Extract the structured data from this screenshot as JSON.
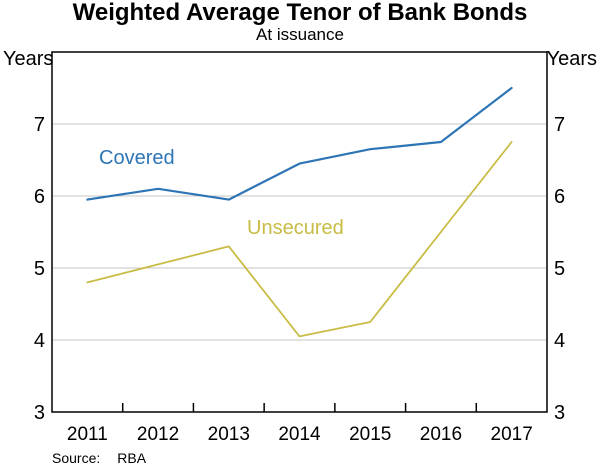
{
  "title": "Weighted Average Tenor of Bank Bonds",
  "subtitle": "At issuance",
  "axis_units": {
    "left": "Years",
    "right": "Years"
  },
  "source": {
    "label": "Source:",
    "value": "RBA"
  },
  "colors": {
    "covered_line": "#2e75b6",
    "unsecured_line": "#c9bc45",
    "gridline": "#c5c5c5",
    "axis": "#000000",
    "background": "#ffffff"
  },
  "chart_data": {
    "type": "line",
    "title": "Weighted Average Tenor of Bank Bonds",
    "subtitle": "At issuance",
    "categories": [
      "2011",
      "2012",
      "2013",
      "2014",
      "2015",
      "2016",
      "2017"
    ],
    "series": [
      {
        "name": "Covered",
        "color": "#2e75b6",
        "values": [
          5.95,
          6.1,
          5.95,
          6.45,
          6.65,
          6.75,
          7.5
        ]
      },
      {
        "name": "Unsecured",
        "color": "#c9bc45",
        "values": [
          4.8,
          5.05,
          5.3,
          4.05,
          4.25,
          5.5,
          6.75
        ]
      }
    ],
    "ylabel_left": "Years",
    "ylabel_right": "Years",
    "ylim": [
      3,
      8
    ],
    "yticks": [
      3,
      4,
      5,
      6,
      7
    ],
    "grid": true,
    "legend": "inline-labels",
    "xlabel": "",
    "source": "Source: RBA"
  }
}
